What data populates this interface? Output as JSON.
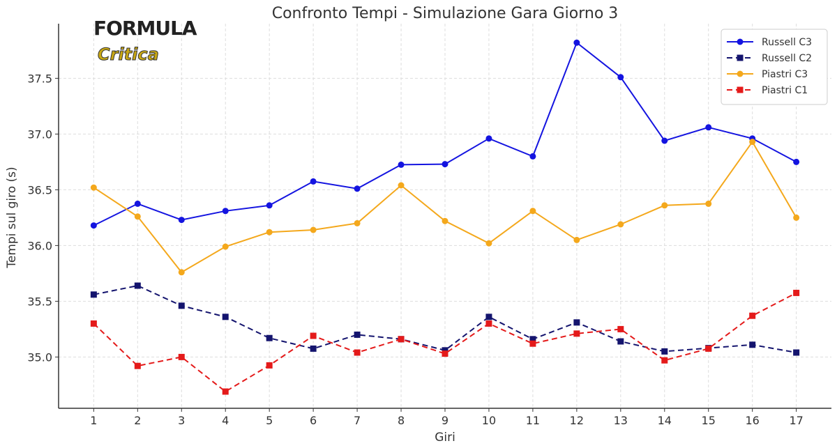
{
  "logo": {
    "line1": "FORMULA",
    "line2": "Critica"
  },
  "chart_data": {
    "type": "line",
    "title": "Confronto Tempi - Simulazione Gara Giorno 3",
    "xlabel": "Giri",
    "ylabel": "Tempi sul giro (s)",
    "x": [
      1,
      2,
      3,
      4,
      5,
      6,
      7,
      8,
      9,
      10,
      11,
      12,
      13,
      14,
      15,
      16,
      17
    ],
    "xlim": [
      0.2,
      17.8
    ],
    "ylim": [
      34.54,
      37.99
    ],
    "yticks": [
      35.0,
      35.5,
      36.0,
      36.5,
      37.0,
      37.5
    ],
    "ytick_labels": [
      "35.0",
      "35.5",
      "36.0",
      "36.5",
      "37.0",
      "37.5"
    ],
    "grid": true,
    "legend_position": "top-right",
    "series": [
      {
        "name": "Russell C3",
        "color": "#1414e0",
        "dash": false,
        "marker": "circle",
        "values": [
          36.18,
          36.375,
          36.23,
          36.31,
          36.36,
          36.575,
          36.51,
          36.725,
          36.73,
          36.96,
          36.8,
          37.82,
          37.51,
          36.94,
          37.06,
          36.96,
          36.75
        ]
      },
      {
        "name": "Russell C2",
        "color": "#14146e",
        "dash": true,
        "marker": "square",
        "values": [
          35.56,
          35.64,
          35.46,
          35.36,
          35.17,
          35.075,
          35.2,
          35.16,
          35.06,
          35.36,
          35.16,
          35.31,
          35.14,
          35.05,
          35.08,
          35.11,
          35.04
        ]
      },
      {
        "name": "Piastri C3",
        "color": "#f4a81c",
        "dash": false,
        "marker": "circle",
        "values": [
          36.52,
          36.26,
          35.76,
          35.99,
          36.12,
          36.14,
          36.2,
          36.54,
          36.22,
          36.02,
          36.31,
          36.05,
          36.19,
          36.36,
          36.375,
          36.93,
          36.25
        ]
      },
      {
        "name": "Piastri C1",
        "color": "#e41a1a",
        "dash": true,
        "marker": "square",
        "values": [
          35.3,
          34.92,
          35.0,
          34.69,
          34.925,
          35.19,
          35.04,
          35.16,
          35.03,
          35.3,
          35.12,
          35.21,
          35.25,
          34.97,
          35.075,
          35.37,
          35.575
        ]
      }
    ]
  }
}
